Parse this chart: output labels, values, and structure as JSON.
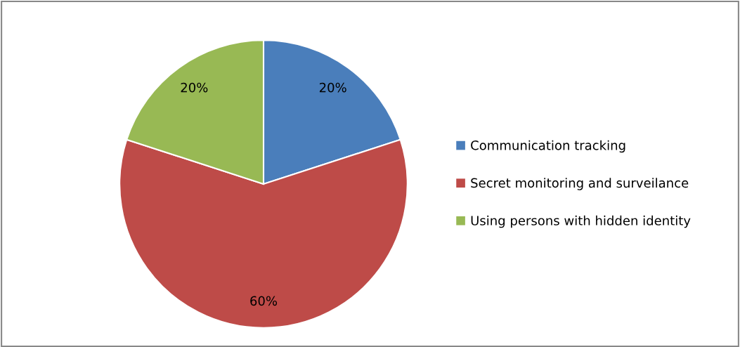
{
  "chart_data": {
    "type": "pie",
    "categories": [
      "Communication tracking",
      "Secret monitoring and surveilance",
      "Using persons with hidden identity"
    ],
    "values": [
      20,
      60,
      20
    ],
    "value_labels": [
      "20%",
      "60%",
      "20%"
    ],
    "colors": [
      "#4a7ebb",
      "#be4b48",
      "#98b954"
    ],
    "legend": "right"
  }
}
